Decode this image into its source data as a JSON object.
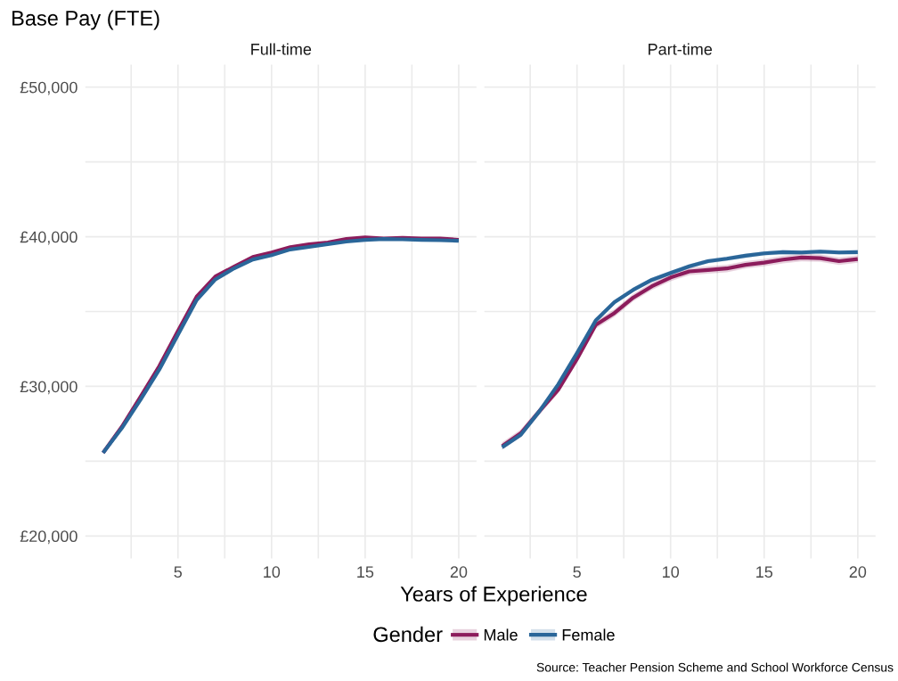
{
  "chart_data": [
    {
      "type": "line",
      "title": "Full-time",
      "ylabel": "Base Pay (FTE)",
      "xlabel": "Years of Experience",
      "legend": "bottom",
      "legend_title": "Gender",
      "grid": true,
      "x": [
        1,
        2,
        3,
        4,
        5,
        6,
        7,
        8,
        9,
        10,
        11,
        12,
        13,
        14,
        15,
        16,
        17,
        18,
        19,
        20
      ],
      "series": [
        {
          "name": "Male",
          "color": "#8c1c5c",
          "values": [
            25560,
            27300,
            29300,
            31350,
            33700,
            36000,
            37350,
            38000,
            38650,
            38950,
            39300,
            39500,
            39620,
            39850,
            39950,
            39880,
            39930,
            39880,
            39880,
            39800
          ]
        },
        {
          "name": "Female",
          "color": "#2a6699",
          "values": [
            25560,
            27210,
            29110,
            31120,
            33450,
            35770,
            37150,
            37890,
            38480,
            38770,
            39150,
            39320,
            39510,
            39680,
            39790,
            39850,
            39830,
            39790,
            39770,
            39730
          ]
        }
      ],
      "xlim": [
        0.05,
        20.95
      ],
      "ylim": [
        18500,
        51500
      ],
      "xticks": [
        {
          "value": 2.5,
          "label": null
        },
        5,
        {
          "value": 7.5,
          "label": null
        },
        10,
        {
          "value": 12.5,
          "label": null
        },
        15,
        {
          "value": 17.5,
          "label": null
        },
        20
      ],
      "yticks": [
        {
          "value": 20000,
          "label": "£20,000"
        },
        {
          "value": 25000,
          "label": null
        },
        {
          "value": 30000,
          "label": "£30,000"
        },
        {
          "value": 35000,
          "label": null
        },
        {
          "value": 40000,
          "label": "£40,000"
        },
        {
          "value": 45000,
          "label": null
        },
        {
          "value": 50000,
          "label": "£50,000"
        }
      ]
    },
    {
      "type": "line",
      "title": "Part-time",
      "grid": true,
      "tick_labels": "x",
      "annotations": [
        "Source: Teacher Pension Scheme and School Workforce Census"
      ],
      "x": [
        1,
        2,
        3,
        4,
        5,
        6,
        7,
        8,
        9,
        10,
        11,
        12,
        13,
        14,
        15,
        16,
        17,
        18,
        19,
        20
      ],
      "series": [
        {
          "name": "Male",
          "color": "#8c1c5c",
          "values": [
            26010,
            26870,
            28350,
            29780,
            31830,
            34110,
            34900,
            35930,
            36690,
            37280,
            37680,
            37780,
            37880,
            38120,
            38270,
            38470,
            38610,
            38570,
            38370,
            38510
          ],
          "lower": [
            25760,
            26620,
            28100,
            29530,
            31580,
            33860,
            34650,
            35680,
            36440,
            37030,
            37430,
            37530,
            37630,
            37870,
            38020,
            38220,
            38360,
            38320,
            38120,
            38260
          ],
          "upper": [
            26260,
            27120,
            28600,
            30030,
            32080,
            34360,
            35150,
            36180,
            36940,
            37530,
            37930,
            38030,
            38130,
            38370,
            38520,
            38720,
            38860,
            38820,
            38620,
            38760
          ]
        },
        {
          "name": "Female",
          "color": "#2a6699",
          "values": [
            25930,
            26770,
            28350,
            30140,
            32220,
            34400,
            35630,
            36450,
            37120,
            37580,
            38020,
            38370,
            38530,
            38730,
            38890,
            38970,
            38950,
            39010,
            38950,
            38970
          ],
          "lower": [
            25780,
            26620,
            28200,
            29990,
            32070,
            34250,
            35480,
            36300,
            36970,
            37430,
            37870,
            38220,
            38380,
            38580,
            38740,
            38820,
            38800,
            38860,
            38800,
            38820
          ],
          "upper": [
            26080,
            26920,
            28500,
            30290,
            32370,
            34550,
            35780,
            36600,
            37270,
            37730,
            38170,
            38520,
            38680,
            38880,
            39040,
            39120,
            39100,
            39160,
            39100,
            39120
          ]
        }
      ],
      "xlim": [
        0.05,
        20.95
      ],
      "ylim": [
        18500,
        51500
      ],
      "xticks": [
        {
          "value": 2.5,
          "label": null
        },
        5,
        {
          "value": 7.5,
          "label": null
        },
        10,
        {
          "value": 12.5,
          "label": null
        },
        15,
        {
          "value": 17.5,
          "label": null
        },
        20
      ],
      "yticks": [
        20000,
        25000,
        30000,
        35000,
        40000,
        45000,
        50000
      ]
    }
  ]
}
